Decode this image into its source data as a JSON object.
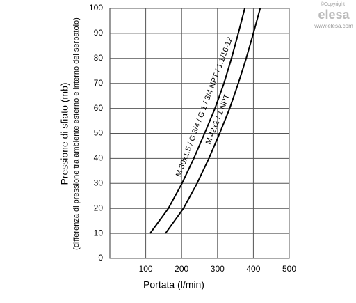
{
  "chart_data": {
    "type": "line",
    "ylabel": "Pressione di sfiato (mb)",
    "ylabel_sub": "(differenza di pressione tra ambiente esterno e interno del serbatoio)",
    "xlabel": "Portata (l/min)",
    "xlim": [
      0,
      500
    ],
    "ylim": [
      0,
      100
    ],
    "xticks": [
      100,
      200,
      300,
      400,
      500
    ],
    "yticks": [
      0,
      10,
      20,
      30,
      40,
      50,
      60,
      70,
      80,
      90,
      100
    ],
    "grid": true,
    "series": [
      {
        "name": "M 30x1.5 / G 3/4 / G 1 / 3/4 NPT / 1.1/16-12",
        "color": "#000000",
        "x": [
          112,
          163,
          201,
          234,
          264,
          293,
          318,
          339,
          358,
          376
        ],
        "values": [
          10,
          20,
          30,
          40,
          50,
          60,
          70,
          80,
          90,
          100
        ]
      },
      {
        "name": "M 42x2 / 1 NPT",
        "color": "#000000",
        "x": [
          155,
          205,
          243,
          276,
          306,
          334,
          358,
          380,
          400,
          419
        ],
        "values": [
          10,
          20,
          30,
          40,
          50,
          60,
          70,
          80,
          90,
          100
        ]
      }
    ]
  },
  "watermark": {
    "copyright": "©Copyright",
    "brand": "elesa",
    "url": "www.elesa.com"
  }
}
